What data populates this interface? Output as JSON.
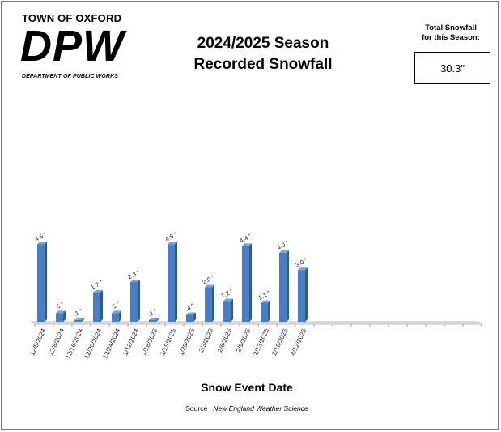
{
  "header": {
    "town": "TOWN OF OXFORD",
    "dpw": "DPW",
    "department": "DEPARTMENT OF PUBLIC WORKS",
    "title_line1": "2024/2025 Season",
    "title_line2": "Recorded Snowfall"
  },
  "total": {
    "label_line1": "Total Snowfall",
    "label_line2": "for this Season:",
    "value": "30.3\""
  },
  "footer": {
    "source_prefix": "Source :",
    "source_name": "New England Weather  Science"
  },
  "chart_data": {
    "type": "bar",
    "title": "2024/2025 Season Recorded Snowfall",
    "xlabel": "Snow Event Date",
    "ylabel": "",
    "ylim": [
      0,
      5.5
    ],
    "grid": false,
    "categories": [
      "12/5/2024",
      "12/8/2024",
      "12/16/2024",
      "12/20/2024",
      "12/24/2024",
      "1/12/2024",
      "1/16/2025",
      "1/19/2025",
      "1/29/2025",
      "2/3/2025",
      "2/6/2025",
      "2/9/2025",
      "2/13/2025",
      "2/16/2025",
      "4/12/2025"
    ],
    "values": [
      4.5,
      0.5,
      0.1,
      1.7,
      0.5,
      2.3,
      0.1,
      4.5,
      0.4,
      2.0,
      1.2,
      4.4,
      1.1,
      4.0,
      3.0
    ],
    "data_labels": [
      "4.5 \"",
      ".5 \"",
      ".1 \"",
      "1.7 \"",
      ".5 \"",
      "2.3 \"",
      ".1 \"",
      "4.5 \"",
      ".4 \"",
      "2.0 \"",
      "1.2 \"",
      "4.4 \"",
      "1.1 \"",
      "4.0 \"",
      "3.0 \""
    ],
    "total_slots": 24,
    "colors": {
      "bar_front": "#4a7ec4",
      "bar_side": "#2b5a96",
      "bar_top": "#7aa3d8",
      "floor": "#bfbfbf"
    }
  }
}
